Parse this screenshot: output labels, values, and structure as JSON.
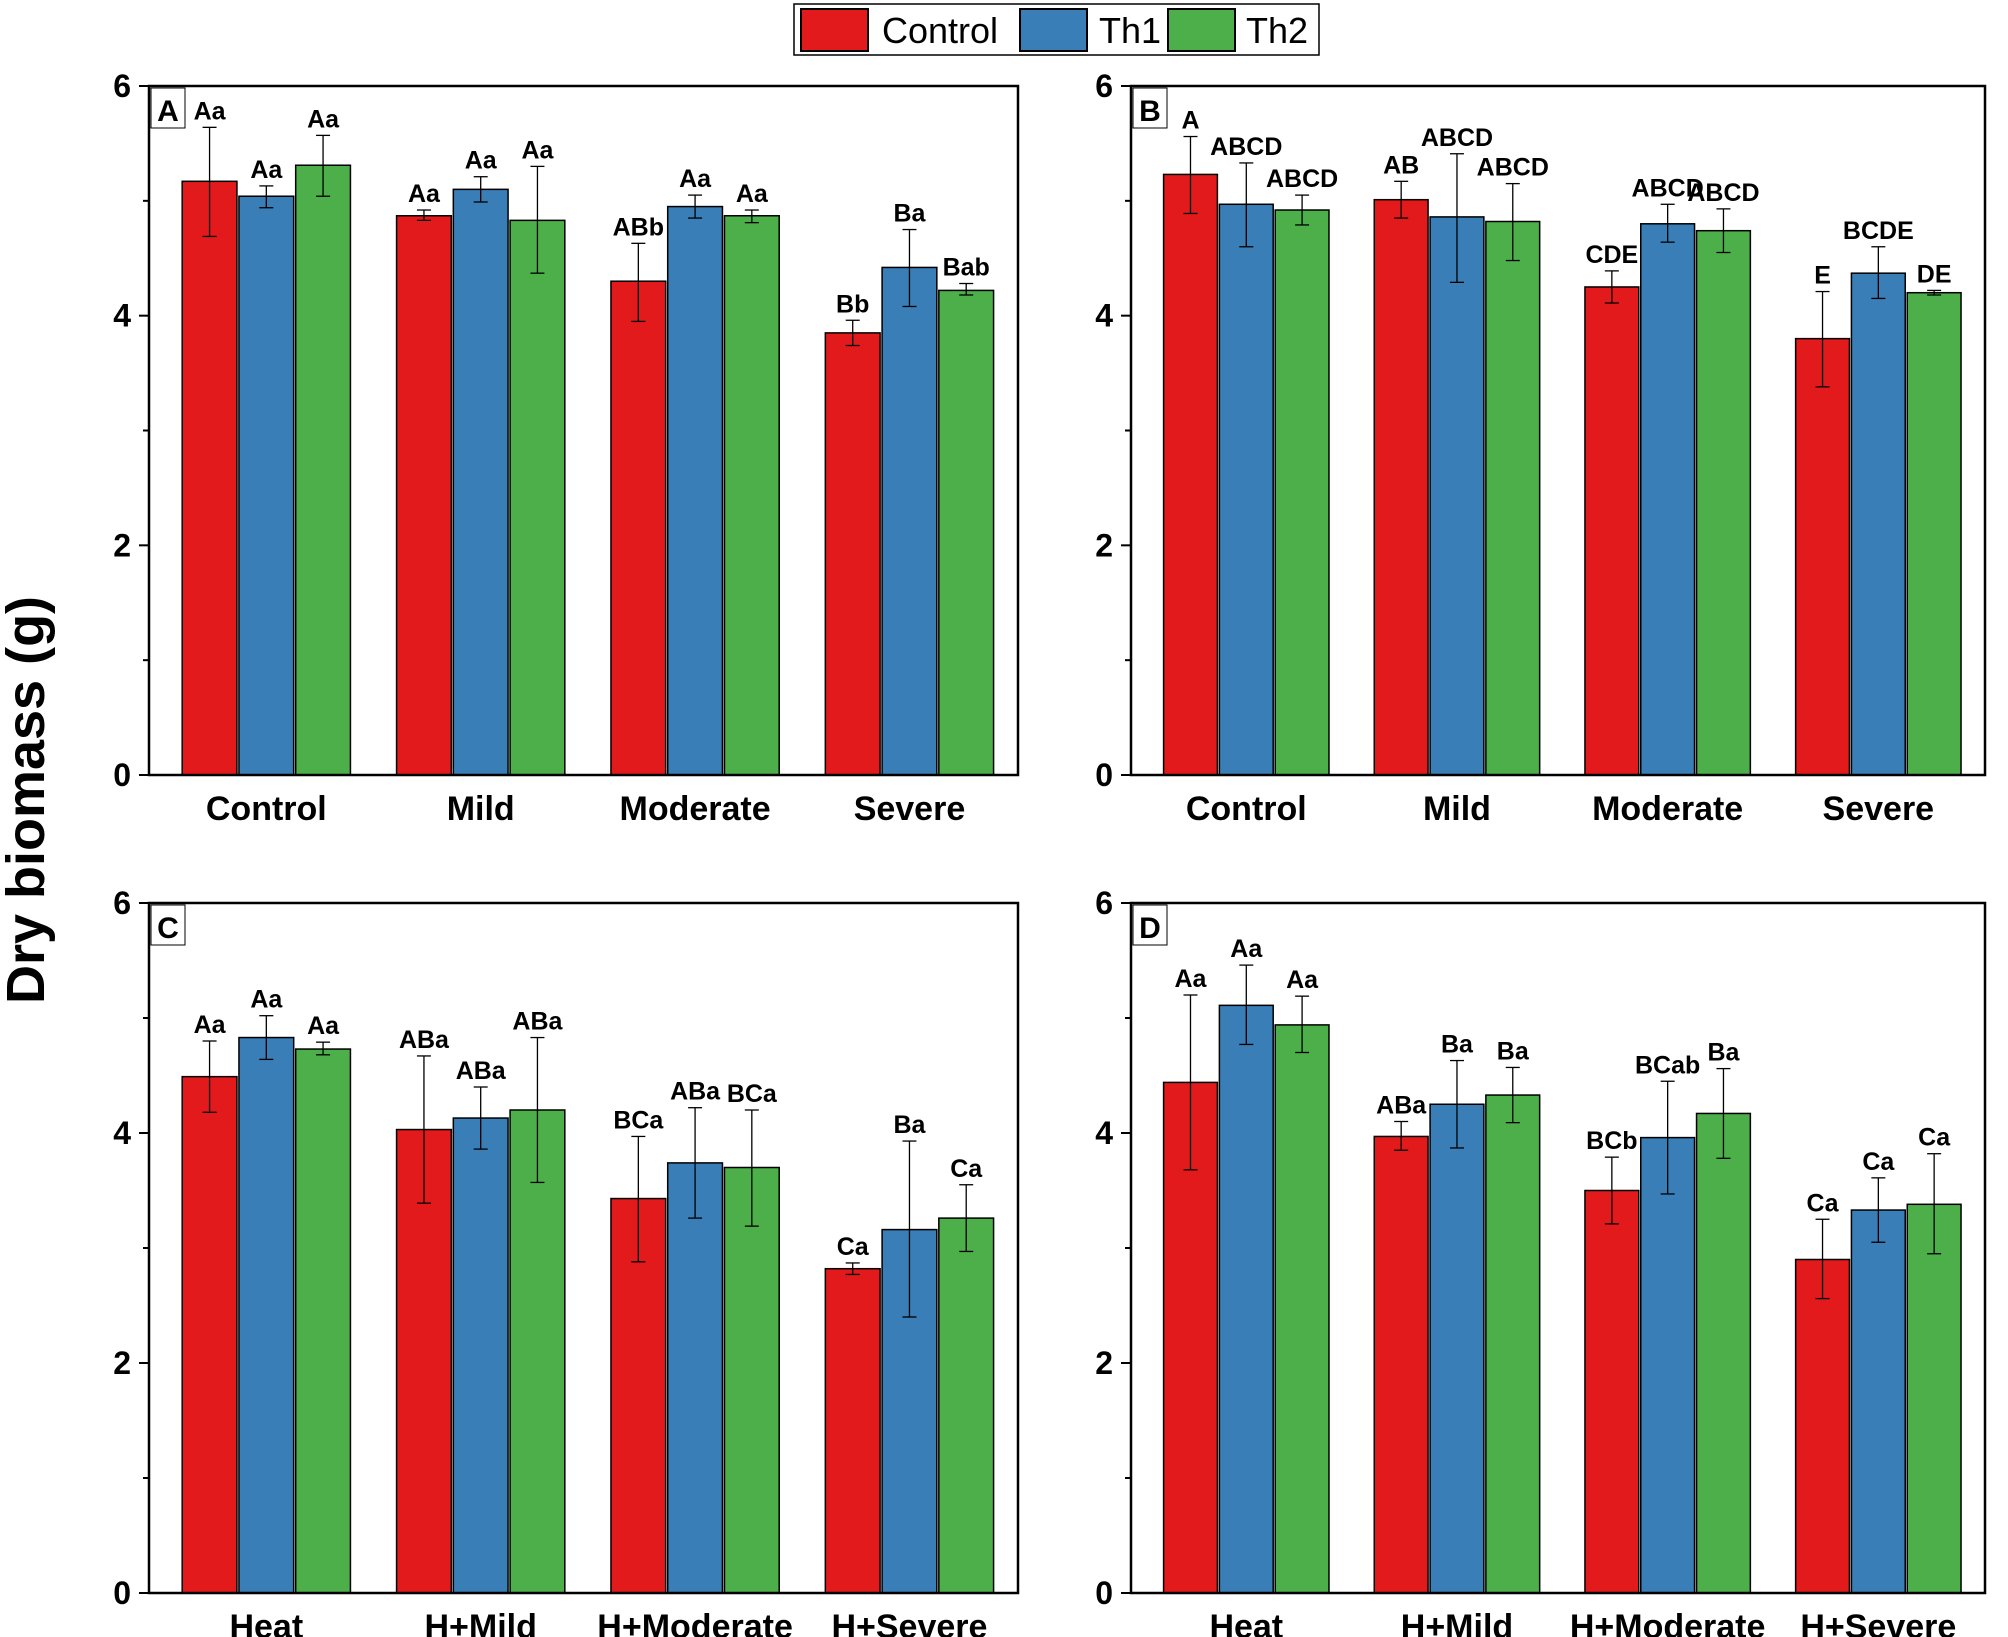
{
  "legend": [
    {
      "name": "Control",
      "color": "#e31a1c"
    },
    {
      "name": "Th1",
      "color": "#3a7eb8"
    },
    {
      "name": "Th2",
      "color": "#4daf4a"
    }
  ],
  "ylabel": "Dry biomass (g)",
  "chart_data": [
    {
      "type": "bar",
      "panel": "A",
      "ylabel": "Dry biomass (g)",
      "ylim": [
        0,
        6
      ],
      "yticks": [
        "0",
        "2",
        "4",
        "6"
      ],
      "categories": [
        "Control",
        "Mild",
        "Moderate",
        "Severe"
      ],
      "series": [
        {
          "name": "Control",
          "values": [
            5.17,
            4.87,
            4.3,
            3.85
          ],
          "err_low": [
            4.69,
            4.83,
            3.95,
            3.74
          ],
          "err_high": [
            5.64,
            4.92,
            4.63,
            3.96
          ],
          "labels": [
            "Aa",
            "Aa",
            "ABb",
            "Bb"
          ]
        },
        {
          "name": "Th1",
          "values": [
            5.04,
            5.1,
            4.95,
            4.42
          ],
          "err_low": [
            4.94,
            4.99,
            4.85,
            4.08
          ],
          "err_high": [
            5.13,
            5.21,
            5.05,
            4.75
          ],
          "labels": [
            "Aa",
            "Aa",
            "Aa",
            "Ba"
          ]
        },
        {
          "name": "Th2",
          "values": [
            5.31,
            4.83,
            4.87,
            4.22
          ],
          "err_low": [
            5.04,
            4.37,
            4.81,
            4.18
          ],
          "err_high": [
            5.57,
            5.3,
            4.92,
            4.28
          ],
          "labels": [
            "Aa",
            "Aa",
            "Aa",
            "Bab"
          ]
        }
      ]
    },
    {
      "type": "bar",
      "panel": "B",
      "ylim": [
        0,
        6
      ],
      "yticks": [
        "0",
        "2",
        "4",
        "6"
      ],
      "categories": [
        "Control",
        "Mild",
        "Moderate",
        "Severe"
      ],
      "series": [
        {
          "name": "Control",
          "values": [
            5.23,
            5.01,
            4.25,
            3.8
          ],
          "err_low": [
            4.89,
            4.85,
            4.11,
            3.38
          ],
          "err_high": [
            5.56,
            5.17,
            4.39,
            4.21
          ],
          "labels": [
            "A",
            "AB",
            "CDE",
            "E"
          ]
        },
        {
          "name": "Th1",
          "values": [
            4.97,
            4.86,
            4.8,
            4.37
          ],
          "err_low": [
            4.6,
            4.29,
            4.64,
            4.15
          ],
          "err_high": [
            5.33,
            5.41,
            4.97,
            4.6
          ],
          "labels": [
            "ABCD",
            "ABCD",
            "ABCD",
            "BCDE"
          ]
        },
        {
          "name": "Th2",
          "values": [
            4.92,
            4.82,
            4.74,
            4.2
          ],
          "err_low": [
            4.79,
            4.48,
            4.55,
            4.18
          ],
          "err_high": [
            5.05,
            5.15,
            4.93,
            4.22
          ],
          "labels": [
            "ABCD",
            "ABCD",
            "ABCD",
            "DE"
          ]
        }
      ]
    },
    {
      "type": "bar",
      "panel": "C",
      "ylim": [
        0,
        6
      ],
      "yticks": [
        "0",
        "2",
        "4",
        "6"
      ],
      "categories": [
        "Heat",
        "H+Mild",
        "H+Moderate",
        "H+Severe"
      ],
      "series": [
        {
          "name": "Control",
          "values": [
            4.49,
            4.03,
            3.43,
            2.82
          ],
          "err_low": [
            4.18,
            3.39,
            2.88,
            2.77
          ],
          "err_high": [
            4.8,
            4.67,
            3.97,
            2.87
          ],
          "labels": [
            "Aa",
            "ABa",
            "BCa",
            "Ca"
          ]
        },
        {
          "name": "Th1",
          "values": [
            4.83,
            4.13,
            3.74,
            3.16
          ],
          "err_low": [
            4.64,
            3.86,
            3.26,
            2.4
          ],
          "err_high": [
            5.02,
            4.4,
            4.22,
            3.93
          ],
          "labels": [
            "Aa",
            "ABa",
            "ABa",
            "Ba"
          ]
        },
        {
          "name": "Th2",
          "values": [
            4.73,
            4.2,
            3.7,
            3.26
          ],
          "err_low": [
            4.68,
            3.57,
            3.19,
            2.97
          ],
          "err_high": [
            4.79,
            4.83,
            4.2,
            3.55
          ],
          "labels": [
            "Aa",
            "ABa",
            "BCa",
            "Ca"
          ]
        }
      ]
    },
    {
      "type": "bar",
      "panel": "D",
      "ylim": [
        0,
        6
      ],
      "yticks": [
        "0",
        "2",
        "4",
        "6"
      ],
      "categories": [
        "Heat",
        "H+Mild",
        "H+Moderate",
        "H+Severe"
      ],
      "series": [
        {
          "name": "Control",
          "values": [
            4.44,
            3.97,
            3.5,
            2.9
          ],
          "err_low": [
            3.68,
            3.85,
            3.21,
            2.56
          ],
          "err_high": [
            5.2,
            4.1,
            3.79,
            3.25
          ],
          "labels": [
            "Aa",
            "ABa",
            "BCb",
            "Ca"
          ]
        },
        {
          "name": "Th1",
          "values": [
            5.11,
            4.25,
            3.96,
            3.33
          ],
          "err_low": [
            4.77,
            3.87,
            3.47,
            3.05
          ],
          "err_high": [
            5.46,
            4.63,
            4.45,
            3.61
          ],
          "labels": [
            "Aa",
            "Ba",
            "BCab",
            "Ca"
          ]
        },
        {
          "name": "Th2",
          "values": [
            4.94,
            4.33,
            4.17,
            3.38
          ],
          "err_low": [
            4.7,
            4.09,
            3.78,
            2.95
          ],
          "err_high": [
            5.19,
            4.57,
            4.56,
            3.82
          ],
          "labels": [
            "Aa",
            "Ba",
            "Ba",
            "Ca"
          ]
        }
      ]
    }
  ]
}
